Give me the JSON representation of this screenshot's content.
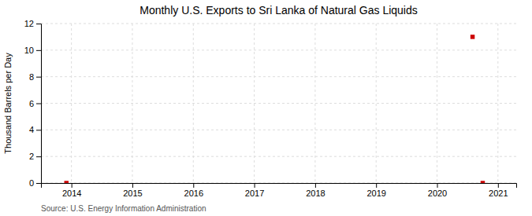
{
  "chart_data": {
    "type": "scatter",
    "title": "Monthly U.S. Exports to Sri Lanka of Natural Gas Liquids",
    "ylabel": "Thousand Barrels per Day",
    "source": "Source: U.S. Energy Information Administration",
    "x": [
      2013.917,
      2020.583,
      2020.75
    ],
    "values": [
      0.0,
      11.0,
      0.0
    ],
    "color": "#cc0000",
    "marker": "square",
    "xlim": [
      2013.5,
      2021.3
    ],
    "ylim": [
      0,
      12
    ],
    "xticks": [
      2014,
      2015,
      2016,
      2017,
      2018,
      2019,
      2020,
      2021
    ],
    "yticks": [
      0,
      2,
      4,
      6,
      8,
      10,
      12
    ],
    "grid": true
  }
}
